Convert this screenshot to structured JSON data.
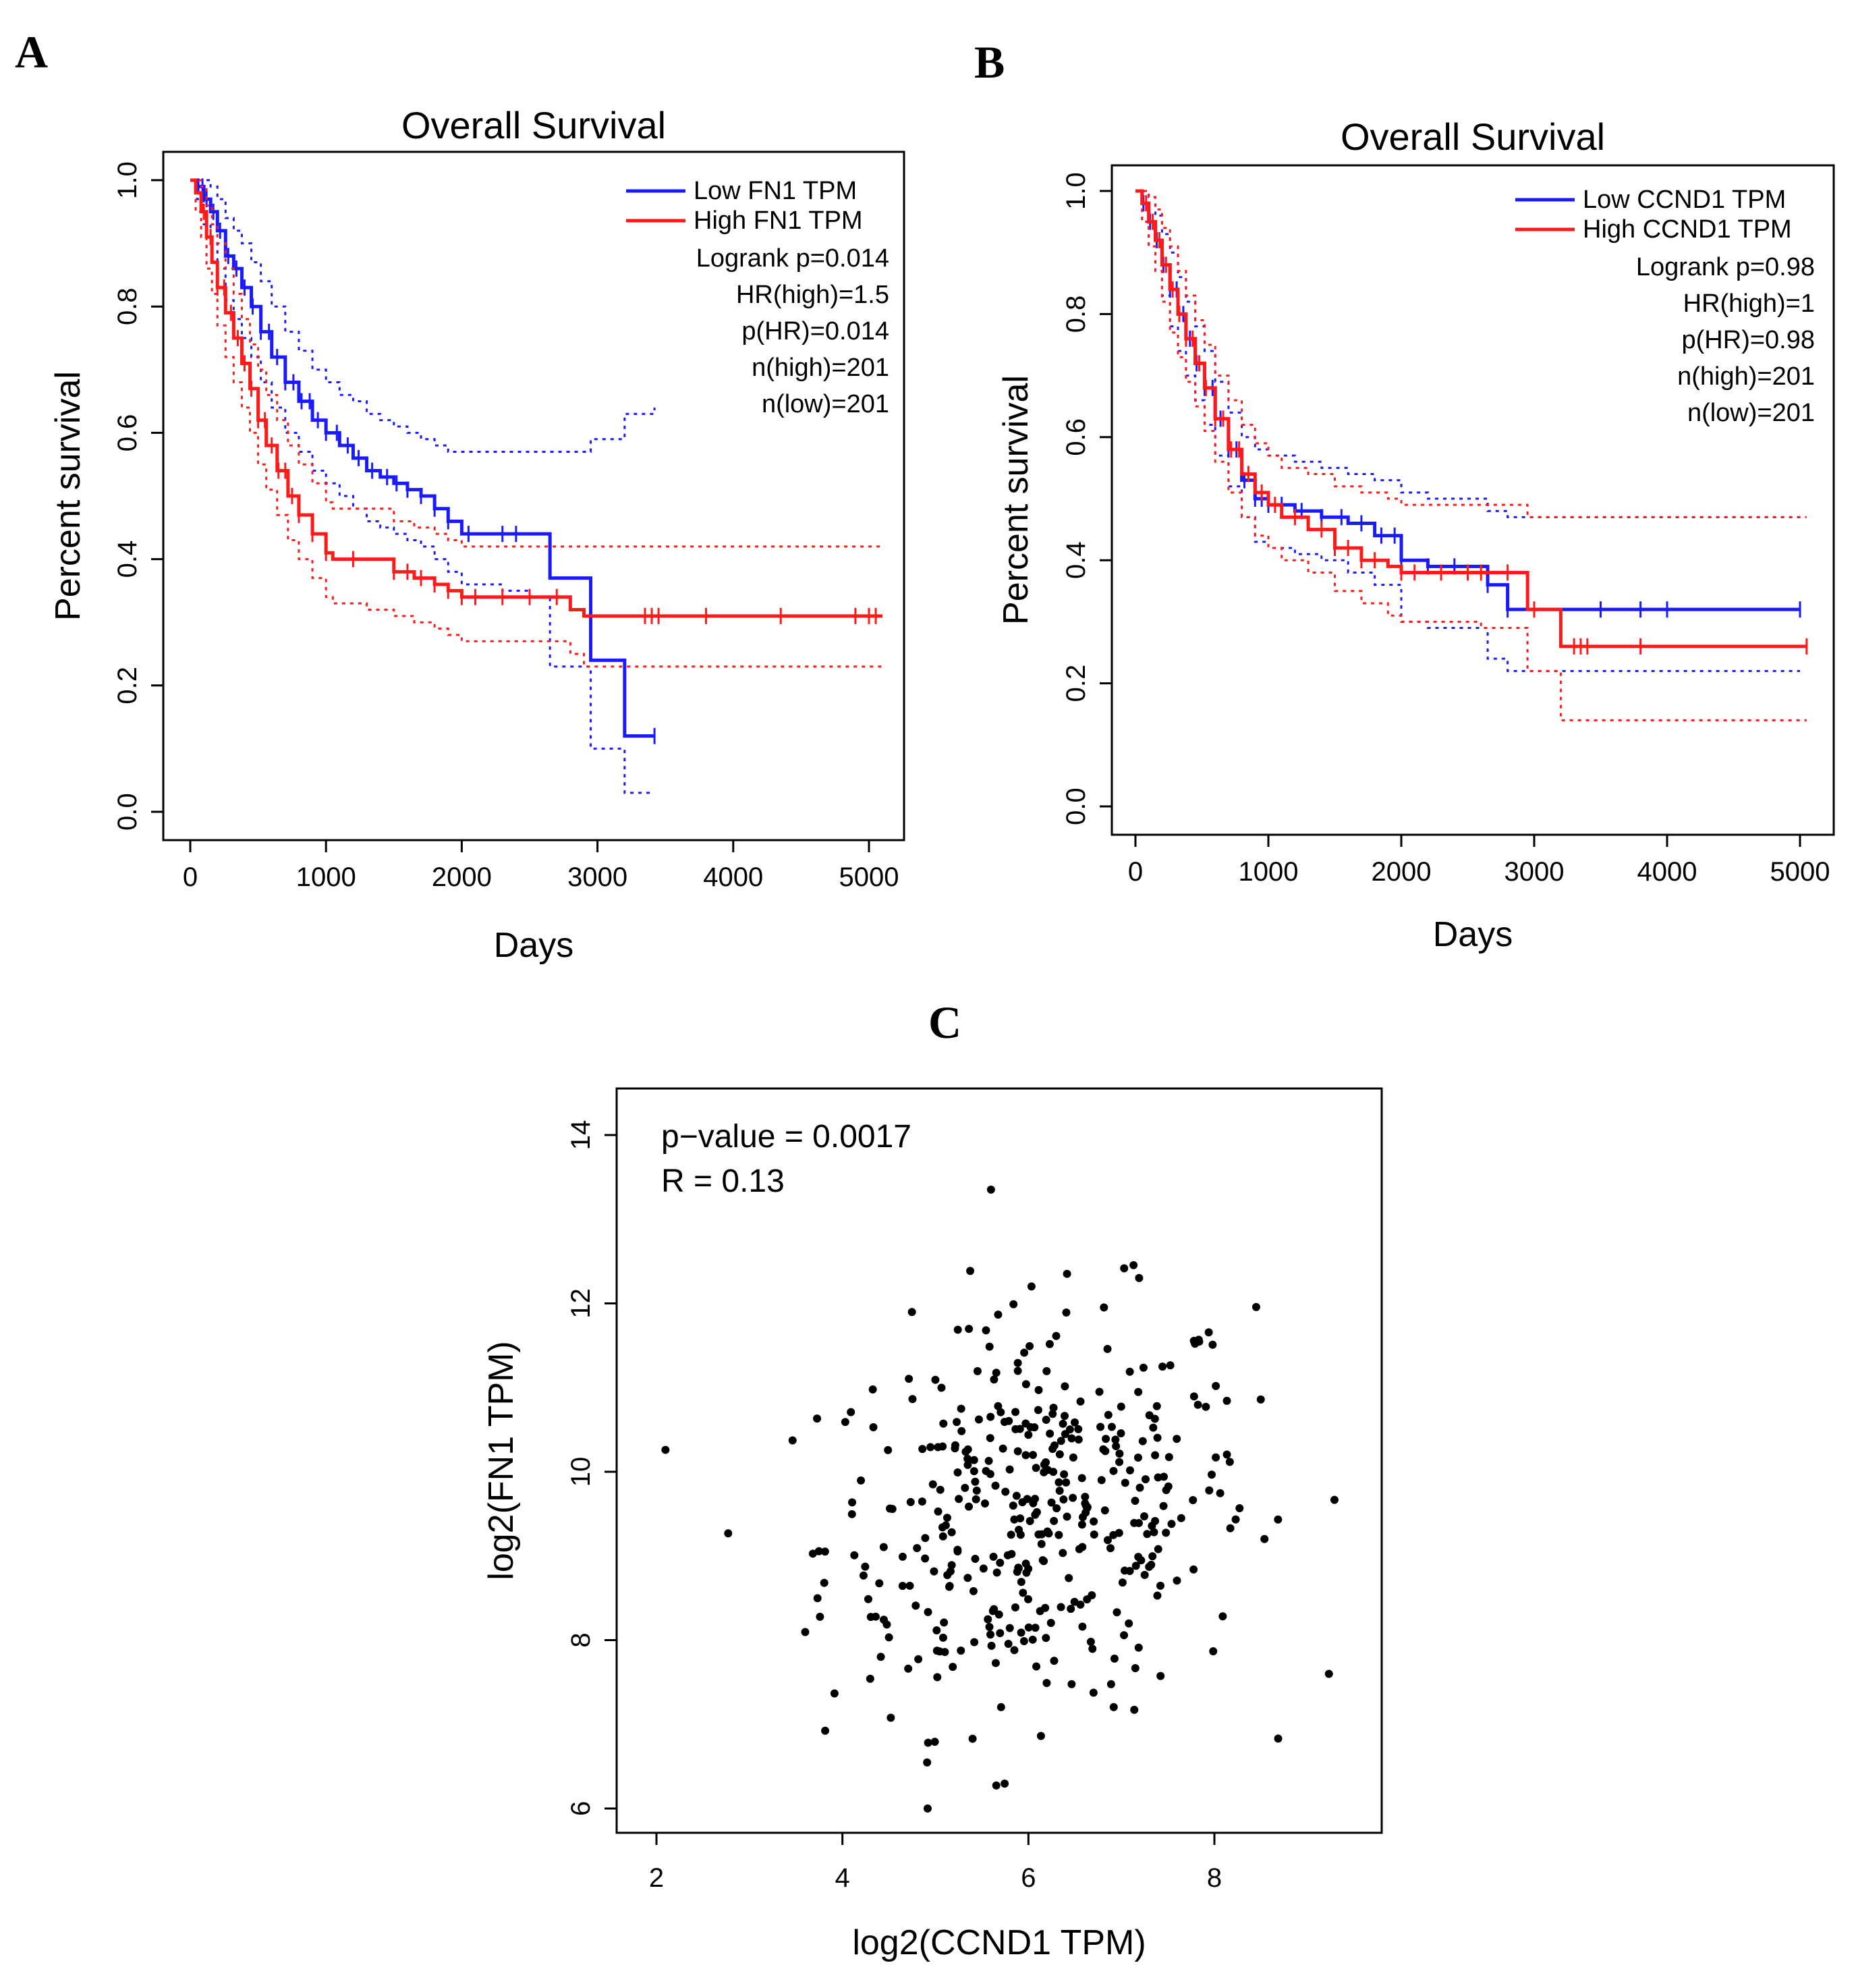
{
  "chart_data": [
    {
      "panel": "A",
      "type": "line",
      "title": "Overall Survival",
      "xlabel": "Days",
      "ylabel": "Percent survival",
      "xlim": [
        0,
        5000
      ],
      "ylim": [
        0,
        1
      ],
      "xticks": [
        "0",
        "1000",
        "2000",
        "3000",
        "4000",
        "5000"
      ],
      "yticks": [
        "0.0",
        "0.2",
        "0.4",
        "0.6",
        "0.8",
        "1.0"
      ],
      "legend": [
        "Low FN1 TPM",
        "High FN1 TPM"
      ],
      "stats": [
        "Logrank p=0.014",
        "HR(high)=1.5",
        "p(HR)=0.014",
        "n(high)=201",
        "n(low)=201"
      ],
      "series": [
        {
          "name": "Low FN1 TPM",
          "color": "#1a1aff",
          "x": [
            0,
            50,
            100,
            150,
            200,
            260,
            320,
            380,
            450,
            520,
            600,
            700,
            800,
            900,
            1000,
            1100,
            1200,
            1300,
            1400,
            1500,
            1600,
            1700,
            1800,
            1900,
            2000,
            2100,
            2300,
            2500,
            2650,
            2950,
            3200,
            3420
          ],
          "y": [
            1.0,
            0.99,
            0.97,
            0.95,
            0.92,
            0.88,
            0.86,
            0.83,
            0.8,
            0.76,
            0.72,
            0.68,
            0.65,
            0.62,
            0.6,
            0.58,
            0.56,
            0.54,
            0.53,
            0.52,
            0.51,
            0.5,
            0.48,
            0.46,
            0.44,
            0.44,
            0.44,
            0.44,
            0.37,
            0.24,
            0.12,
            0.12
          ],
          "upper": [
            1.0,
            1.0,
            1.0,
            0.99,
            0.97,
            0.94,
            0.92,
            0.9,
            0.87,
            0.84,
            0.8,
            0.76,
            0.73,
            0.7,
            0.68,
            0.66,
            0.65,
            0.63,
            0.62,
            0.61,
            0.6,
            0.59,
            0.58,
            0.57,
            0.57,
            0.57,
            0.57,
            0.57,
            0.57,
            0.59,
            0.63,
            0.64
          ],
          "lower": [
            1.0,
            0.97,
            0.93,
            0.9,
            0.86,
            0.81,
            0.78,
            0.75,
            0.72,
            0.68,
            0.64,
            0.6,
            0.57,
            0.54,
            0.52,
            0.5,
            0.48,
            0.46,
            0.45,
            0.44,
            0.43,
            0.42,
            0.4,
            0.38,
            0.36,
            0.36,
            0.35,
            0.34,
            0.23,
            0.1,
            0.03,
            0.03
          ],
          "censor_x": [
            60,
            90,
            120,
            170,
            220,
            280,
            340,
            400,
            460,
            520,
            580,
            640,
            700,
            760,
            820,
            880,
            940,
            1000,
            1080,
            1160,
            1240,
            1340,
            1450,
            1520,
            1600,
            1700,
            1800,
            1900,
            2050,
            2300,
            2400,
            3420
          ]
        },
        {
          "name": "High FN1 TPM",
          "color": "#ff1a1a",
          "x": [
            0,
            40,
            80,
            120,
            160,
            200,
            260,
            320,
            380,
            440,
            500,
            560,
            640,
            720,
            800,
            900,
            1000,
            1050,
            1300,
            1500,
            1650,
            1800,
            1900,
            2000,
            2200,
            2500,
            2800,
            2900,
            3500,
            4000,
            4500,
            5000,
            5100
          ],
          "y": [
            1.0,
            0.98,
            0.95,
            0.91,
            0.87,
            0.83,
            0.79,
            0.75,
            0.71,
            0.67,
            0.62,
            0.58,
            0.54,
            0.5,
            0.47,
            0.44,
            0.41,
            0.4,
            0.4,
            0.38,
            0.37,
            0.36,
            0.35,
            0.34,
            0.34,
            0.34,
            0.32,
            0.31,
            0.31,
            0.31,
            0.31,
            0.31,
            0.31
          ],
          "upper": [
            1.0,
            1.0,
            0.99,
            0.96,
            0.93,
            0.9,
            0.86,
            0.82,
            0.78,
            0.74,
            0.7,
            0.66,
            0.62,
            0.58,
            0.55,
            0.52,
            0.49,
            0.48,
            0.48,
            0.46,
            0.45,
            0.44,
            0.43,
            0.42,
            0.42,
            0.42,
            0.42,
            0.42,
            0.42,
            0.42,
            0.42,
            0.42,
            0.42
          ],
          "lower": [
            1.0,
            0.95,
            0.91,
            0.86,
            0.82,
            0.77,
            0.72,
            0.68,
            0.64,
            0.6,
            0.55,
            0.51,
            0.47,
            0.43,
            0.4,
            0.37,
            0.34,
            0.33,
            0.32,
            0.31,
            0.3,
            0.29,
            0.28,
            0.27,
            0.27,
            0.27,
            0.25,
            0.23,
            0.23,
            0.23,
            0.23,
            0.23,
            0.23
          ],
          "censor_x": [
            100,
            150,
            200,
            250,
            300,
            350,
            400,
            450,
            500,
            550,
            600,
            650,
            700,
            750,
            800,
            900,
            1000,
            1200,
            1500,
            1600,
            1700,
            1800,
            1900,
            2000,
            2100,
            2300,
            2500,
            2700,
            3350,
            3400,
            3450,
            3800,
            4350,
            4900,
            5000,
            5050
          ]
        }
      ]
    },
    {
      "panel": "B",
      "type": "line",
      "title": "Overall Survival",
      "xlabel": "Days",
      "ylabel": "Percent survival",
      "xlim": [
        0,
        5000
      ],
      "ylim": [
        0,
        1
      ],
      "xticks": [
        "0",
        "1000",
        "2000",
        "3000",
        "4000",
        "5000"
      ],
      "yticks": [
        "0.0",
        "0.2",
        "0.4",
        "0.6",
        "0.8",
        "1.0"
      ],
      "legend": [
        "Low CCND1 TPM",
        "High CCND1 TPM"
      ],
      "stats": [
        "Logrank p=0.98",
        "HR(high)=1",
        "p(HR)=0.98",
        "n(high)=201",
        "n(low)=201"
      ],
      "series": [
        {
          "name": "Low CCND1 TPM",
          "color": "#1a1aff",
          "x": [
            0,
            50,
            100,
            150,
            200,
            260,
            320,
            380,
            450,
            520,
            600,
            700,
            800,
            900,
            1000,
            1200,
            1400,
            1600,
            1800,
            2000,
            2200,
            2500,
            2650,
            2800,
            2900,
            3000,
            3500,
            4000,
            4500,
            5000
          ],
          "y": [
            1.0,
            0.98,
            0.95,
            0.92,
            0.88,
            0.84,
            0.8,
            0.76,
            0.72,
            0.68,
            0.63,
            0.58,
            0.53,
            0.5,
            0.49,
            0.48,
            0.47,
            0.46,
            0.44,
            0.4,
            0.39,
            0.39,
            0.36,
            0.32,
            0.32,
            0.32,
            0.32,
            0.32,
            0.32,
            0.32
          ],
          "upper": [
            1.0,
            1.0,
            0.99,
            0.96,
            0.93,
            0.9,
            0.86,
            0.82,
            0.78,
            0.74,
            0.69,
            0.64,
            0.6,
            0.58,
            0.57,
            0.56,
            0.55,
            0.54,
            0.53,
            0.51,
            0.5,
            0.5,
            0.48,
            0.47,
            0.47,
            0.47,
            0.47,
            0.47,
            0.47,
            0.47
          ],
          "lower": [
            1.0,
            0.95,
            0.91,
            0.87,
            0.83,
            0.78,
            0.74,
            0.7,
            0.66,
            0.62,
            0.57,
            0.52,
            0.47,
            0.43,
            0.42,
            0.41,
            0.4,
            0.38,
            0.36,
            0.3,
            0.29,
            0.29,
            0.24,
            0.22,
            0.22,
            0.22,
            0.22,
            0.22,
            0.22,
            0.22
          ],
          "censor_x": [
            60,
            110,
            160,
            210,
            260,
            310,
            360,
            410,
            460,
            520,
            580,
            640,
            700,
            760,
            820,
            900,
            950,
            1000,
            1100,
            1250,
            1400,
            1550,
            1700,
            1850,
            1950,
            2000,
            2200,
            2400,
            2650,
            2800,
            3500,
            3800,
            4000,
            5000
          ]
        },
        {
          "name": "High CCND1 TPM",
          "color": "#ff1a1a",
          "x": [
            0,
            50,
            100,
            150,
            200,
            260,
            320,
            380,
            450,
            520,
            600,
            700,
            800,
            900,
            1000,
            1100,
            1300,
            1500,
            1700,
            1900,
            2000,
            2300,
            2600,
            2950,
            3200,
            3500,
            4000,
            4500,
            5000,
            5050
          ],
          "y": [
            1.0,
            0.98,
            0.95,
            0.92,
            0.88,
            0.84,
            0.8,
            0.76,
            0.72,
            0.68,
            0.63,
            0.58,
            0.54,
            0.51,
            0.49,
            0.47,
            0.45,
            0.42,
            0.4,
            0.39,
            0.38,
            0.38,
            0.38,
            0.32,
            0.26,
            0.26,
            0.26,
            0.26,
            0.26,
            0.26
          ],
          "upper": [
            1.0,
            1.0,
            0.99,
            0.97,
            0.94,
            0.91,
            0.87,
            0.83,
            0.79,
            0.75,
            0.7,
            0.66,
            0.62,
            0.59,
            0.57,
            0.55,
            0.54,
            0.52,
            0.51,
            0.5,
            0.49,
            0.49,
            0.49,
            0.47,
            0.47,
            0.47,
            0.47,
            0.47,
            0.47,
            0.47
          ],
          "lower": [
            1.0,
            0.95,
            0.91,
            0.87,
            0.82,
            0.77,
            0.73,
            0.69,
            0.65,
            0.61,
            0.56,
            0.51,
            0.47,
            0.44,
            0.42,
            0.4,
            0.38,
            0.35,
            0.33,
            0.31,
            0.3,
            0.3,
            0.29,
            0.22,
            0.14,
            0.14,
            0.14,
            0.14,
            0.14,
            0.14
          ],
          "censor_x": [
            80,
            130,
            180,
            230,
            280,
            330,
            380,
            430,
            480,
            530,
            600,
            660,
            720,
            780,
            850,
            950,
            1050,
            1200,
            1400,
            1500,
            1600,
            1700,
            1800,
            2000,
            2100,
            2300,
            2500,
            2600,
            2800,
            3000,
            3300,
            3350,
            3400,
            3800,
            5050
          ]
        }
      ]
    },
    {
      "panel": "C",
      "type": "scatter",
      "xlabel": "log2(CCND1 TPM)",
      "ylabel": "log2(FN1 TPM)",
      "xlim": [
        1.7,
        9.6
      ],
      "ylim": [
        5.7,
        14.3
      ],
      "xticks": [
        "2",
        "4",
        "6",
        "8"
      ],
      "yticks": [
        "6",
        "8",
        "10",
        "12",
        "14"
      ],
      "stats": [
        "p−value = 0.0017",
        "R = 0.13"
      ],
      "points_count": 402
    }
  ],
  "panels": {
    "A": {
      "letter": "A"
    },
    "B": {
      "letter": "B"
    },
    "C": {
      "letter": "C"
    }
  },
  "colors": {
    "low": "#1a1aff",
    "high": "#ff1a1a",
    "points": "#000000"
  }
}
